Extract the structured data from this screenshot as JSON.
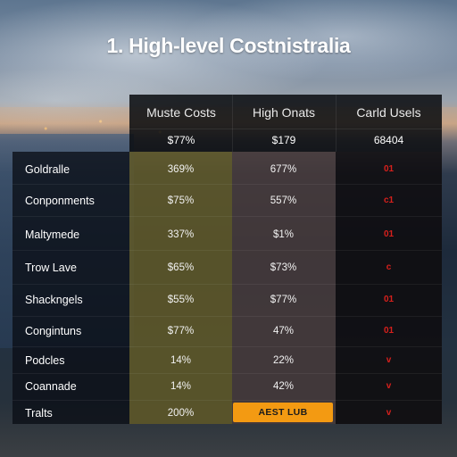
{
  "title": "1. High-level Costnistralia",
  "columns": [
    {
      "header": "Muste Costs",
      "subheader": "$77%"
    },
    {
      "header": "High Onats",
      "subheader": "$179"
    },
    {
      "header": "Carld Usels",
      "subheader": "68404"
    }
  ],
  "rows": [
    {
      "label": "Goldralle",
      "a": "369%",
      "b": "677%",
      "c": "01"
    },
    {
      "label": "Conponments",
      "a": "$75%",
      "b": "557%",
      "c": "c1"
    },
    {
      "label": "Maltymede",
      "a": "337%",
      "b": "$1%",
      "c": "01"
    },
    {
      "label": "Trow Lave",
      "a": "$65%",
      "b": "$73%",
      "c": "c"
    },
    {
      "label": "Shackngels",
      "a": "$55%",
      "b": "$77%",
      "c": "01"
    },
    {
      "label": "Congintuns",
      "a": "$77%",
      "b": "47%",
      "c": "01"
    },
    {
      "label": "Podcles",
      "a": "14%",
      "b": "22%",
      "c": "v"
    },
    {
      "label": "Coannade",
      "a": "14%",
      "b": "42%",
      "c": "v"
    },
    {
      "label": "Tralts",
      "a": "200%",
      "b": "",
      "c": "v"
    }
  ],
  "action_button": "AEST LUB",
  "colors": {
    "accent_orange": "#f39a12",
    "col_a_bg": "#5f5828",
    "col_b_bg": "#463a3a",
    "alert_red": "#d8201c"
  }
}
